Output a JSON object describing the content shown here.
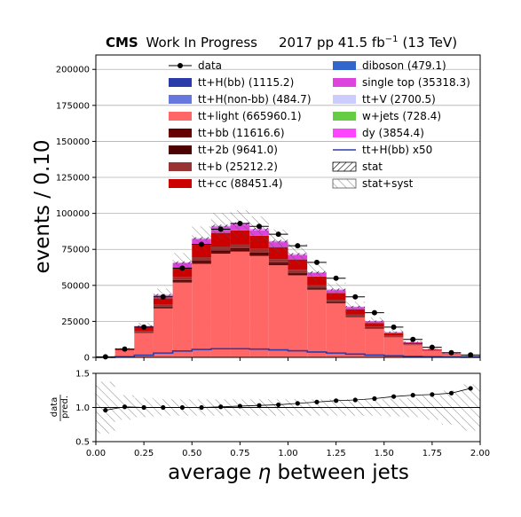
{
  "header": {
    "cms": "CMS",
    "wip": "Work In Progress",
    "run": "2017 pp 41.5 fb",
    "run_sup": "−1",
    "energy": "(13 TeV)"
  },
  "chart_data": [
    {
      "type": "bar",
      "stacked": true,
      "xlabel_pre": "average ",
      "xlabel_sym": "η",
      "xlabel_post": " between jets",
      "ylabel": "events / 0.10",
      "xlim": [
        0,
        2
      ],
      "ylim": [
        0,
        210000
      ],
      "bin_edges": [
        0,
        0.1,
        0.2,
        0.3,
        0.4,
        0.5,
        0.6,
        0.7,
        0.8,
        0.9,
        1.0,
        1.1,
        1.2,
        1.3,
        1.4,
        1.5,
        1.6,
        1.7,
        1.8,
        1.9,
        2.0
      ],
      "yticks": [
        0,
        25000,
        50000,
        75000,
        100000,
        125000,
        150000,
        175000,
        200000
      ],
      "ytick_labels": [
        "0",
        "25000",
        "50000",
        "75000",
        "100000",
        "125000",
        "150000",
        "175000",
        "200000"
      ],
      "xticks": [
        0,
        0.25,
        0.5,
        0.75,
        1.0,
        1.25,
        1.5,
        1.75,
        2.0
      ],
      "xtick_labels": [
        "0.00",
        "0.25",
        "0.50",
        "0.75",
        "1.00",
        "1.25",
        "1.50",
        "1.75",
        "2.00"
      ],
      "grid": "horizontal",
      "legend_position": "top",
      "series": [
        {
          "name": "tt+light (665960.1)",
          "color": "#ff6666",
          "values": [
            300,
            4800,
            17000,
            34000,
            52000,
            65000,
            72000,
            73500,
            70500,
            64000,
            57000,
            47000,
            37500,
            28000,
            20000,
            14000,
            8500,
            4500,
            2200,
            900
          ]
        },
        {
          "name": "tt+bb (11616.6)",
          "color": "#660000",
          "values": [
            10,
            90,
            320,
            620,
            900,
            1150,
            1250,
            1250,
            1200,
            1080,
            950,
            780,
            620,
            470,
            330,
            230,
            140,
            80,
            40,
            18
          ]
        },
        {
          "name": "tt+2b (9641.0)",
          "color": "#4d0000",
          "values": [
            10,
            70,
            260,
            510,
            750,
            950,
            1030,
            1050,
            1000,
            900,
            790,
            650,
            520,
            390,
            280,
            190,
            120,
            65,
            32,
            15
          ]
        },
        {
          "name": "tt+b (25212.2)",
          "color": "#993333",
          "values": [
            20,
            180,
            680,
            1330,
            1950,
            2480,
            2700,
            2720,
            2600,
            2340,
            2050,
            1700,
            1350,
            1020,
            720,
            500,
            300,
            170,
            85,
            40
          ]
        },
        {
          "name": "tt+cc (88451.4)",
          "color": "#cc0000",
          "values": [
            60,
            650,
            2400,
            4650,
            6850,
            8700,
            9500,
            9550,
            9150,
            8250,
            7200,
            5950,
            4750,
            3550,
            2550,
            1750,
            1050,
            600,
            300,
            140
          ]
        },
        {
          "name": "tt+H(bb) (1115.2)",
          "color": "#2b3caa",
          "values": [
            1,
            9,
            30,
            60,
            88,
            110,
            120,
            120,
            115,
            104,
            91,
            75,
            60,
            45,
            32,
            22,
            14,
            8,
            4,
            2
          ]
        },
        {
          "name": "tt+H(non-bb) (484.7)",
          "color": "#6677dd",
          "values": [
            1,
            4,
            13,
            26,
            38,
            48,
            52,
            52,
            50,
            45,
            39,
            33,
            26,
            20,
            14,
            10,
            6,
            3,
            2,
            1
          ]
        },
        {
          "name": "single top (35318.3)",
          "color": "#dd44dd",
          "values": [
            20,
            250,
            950,
            1850,
            2750,
            3450,
            3800,
            3800,
            3650,
            3300,
            2880,
            2380,
            1900,
            1420,
            1010,
            700,
            420,
            240,
            120,
            60
          ]
        },
        {
          "name": "tt+V (2700.5)",
          "color": "#ccccff",
          "values": [
            2,
            20,
            72,
            141,
            209,
            264,
            290,
            291,
            279,
            252,
            220,
            182,
            145,
            108,
            77,
            54,
            32,
            18,
            9,
            4
          ]
        },
        {
          "name": "w+jets (728.4)",
          "color": "#66cc44",
          "values": [
            1,
            5,
            20,
            38,
            56,
            71,
            78,
            78,
            75,
            68,
            59,
            49,
            39,
            29,
            21,
            14,
            9,
            5,
            2,
            1
          ]
        },
        {
          "name": "dy (3854.4)",
          "color": "#ff44ff",
          "values": [
            3,
            27,
            103,
            201,
            298,
            377,
            413,
            415,
            398,
            359,
            314,
            259,
            207,
            154,
            110,
            76,
            46,
            26,
            13,
            6
          ]
        },
        {
          "name": "diboson (479.1)",
          "color": "#3366cc",
          "values": [
            1,
            4,
            13,
            25,
            37,
            47,
            51,
            52,
            50,
            45,
            39,
            32,
            26,
            19,
            14,
            9,
            6,
            3,
            2,
            1
          ]
        }
      ],
      "ttH_x50": {
        "name": "tt+H(bb) x50",
        "color": "#2b3caa",
        "values": [
          50,
          450,
          1500,
          3000,
          4400,
          5500,
          6000,
          6000,
          5750,
          5200,
          4550,
          3750,
          3000,
          2250,
          1600,
          1100,
          700,
          400,
          200,
          100
        ]
      },
      "data": {
        "name": "data",
        "values": [
          380,
          5800,
          21000,
          42000,
          62000,
          78500,
          89000,
          93000,
          91000,
          85500,
          77500,
          66000,
          55000,
          42000,
          31000,
          21000,
          12500,
          7000,
          3200,
          1700
        ]
      },
      "uncertainty": {
        "stat_label": "stat",
        "syst_label": "stat+syst",
        "syst_fraction": 0.1
      },
      "legend_columns": [
        [
          "data",
          "tt+H(bb) (1115.2)",
          "tt+H(non-bb) (484.7)",
          "tt+light (665960.1)",
          "tt+bb (11616.6)",
          "tt+2b (9641.0)",
          "tt+b (25212.2)",
          "tt+cc (88451.4)"
        ],
        [
          "diboson (479.1)",
          "single top (35318.3)",
          "tt+V (2700.5)",
          "w+jets (728.4)",
          "dy (3854.4)",
          "tt+H(bb) x50",
          "stat",
          "stat+syst"
        ]
      ]
    },
    {
      "type": "scatter",
      "ylabel_num": "data",
      "ylabel_den": "pred.",
      "ylim": [
        0.5,
        1.5
      ],
      "yticks": [
        0.5,
        1.0,
        1.5
      ],
      "ytick_labels": [
        "0.5",
        "1.0",
        "1.5"
      ],
      "reference_line": 1.0,
      "ratio": [
        0.96,
        1.01,
        1.0,
        1.0,
        1.0,
        1.0,
        1.01,
        1.02,
        1.03,
        1.04,
        1.06,
        1.08,
        1.1,
        1.11,
        1.13,
        1.16,
        1.18,
        1.19,
        1.21,
        1.28
      ],
      "band_halfwidth": [
        0.38,
        0.18,
        0.14,
        0.12,
        0.12,
        0.12,
        0.12,
        0.12,
        0.12,
        0.12,
        0.12,
        0.12,
        0.12,
        0.12,
        0.12,
        0.13,
        0.14,
        0.18,
        0.25,
        0.34
      ]
    }
  ]
}
